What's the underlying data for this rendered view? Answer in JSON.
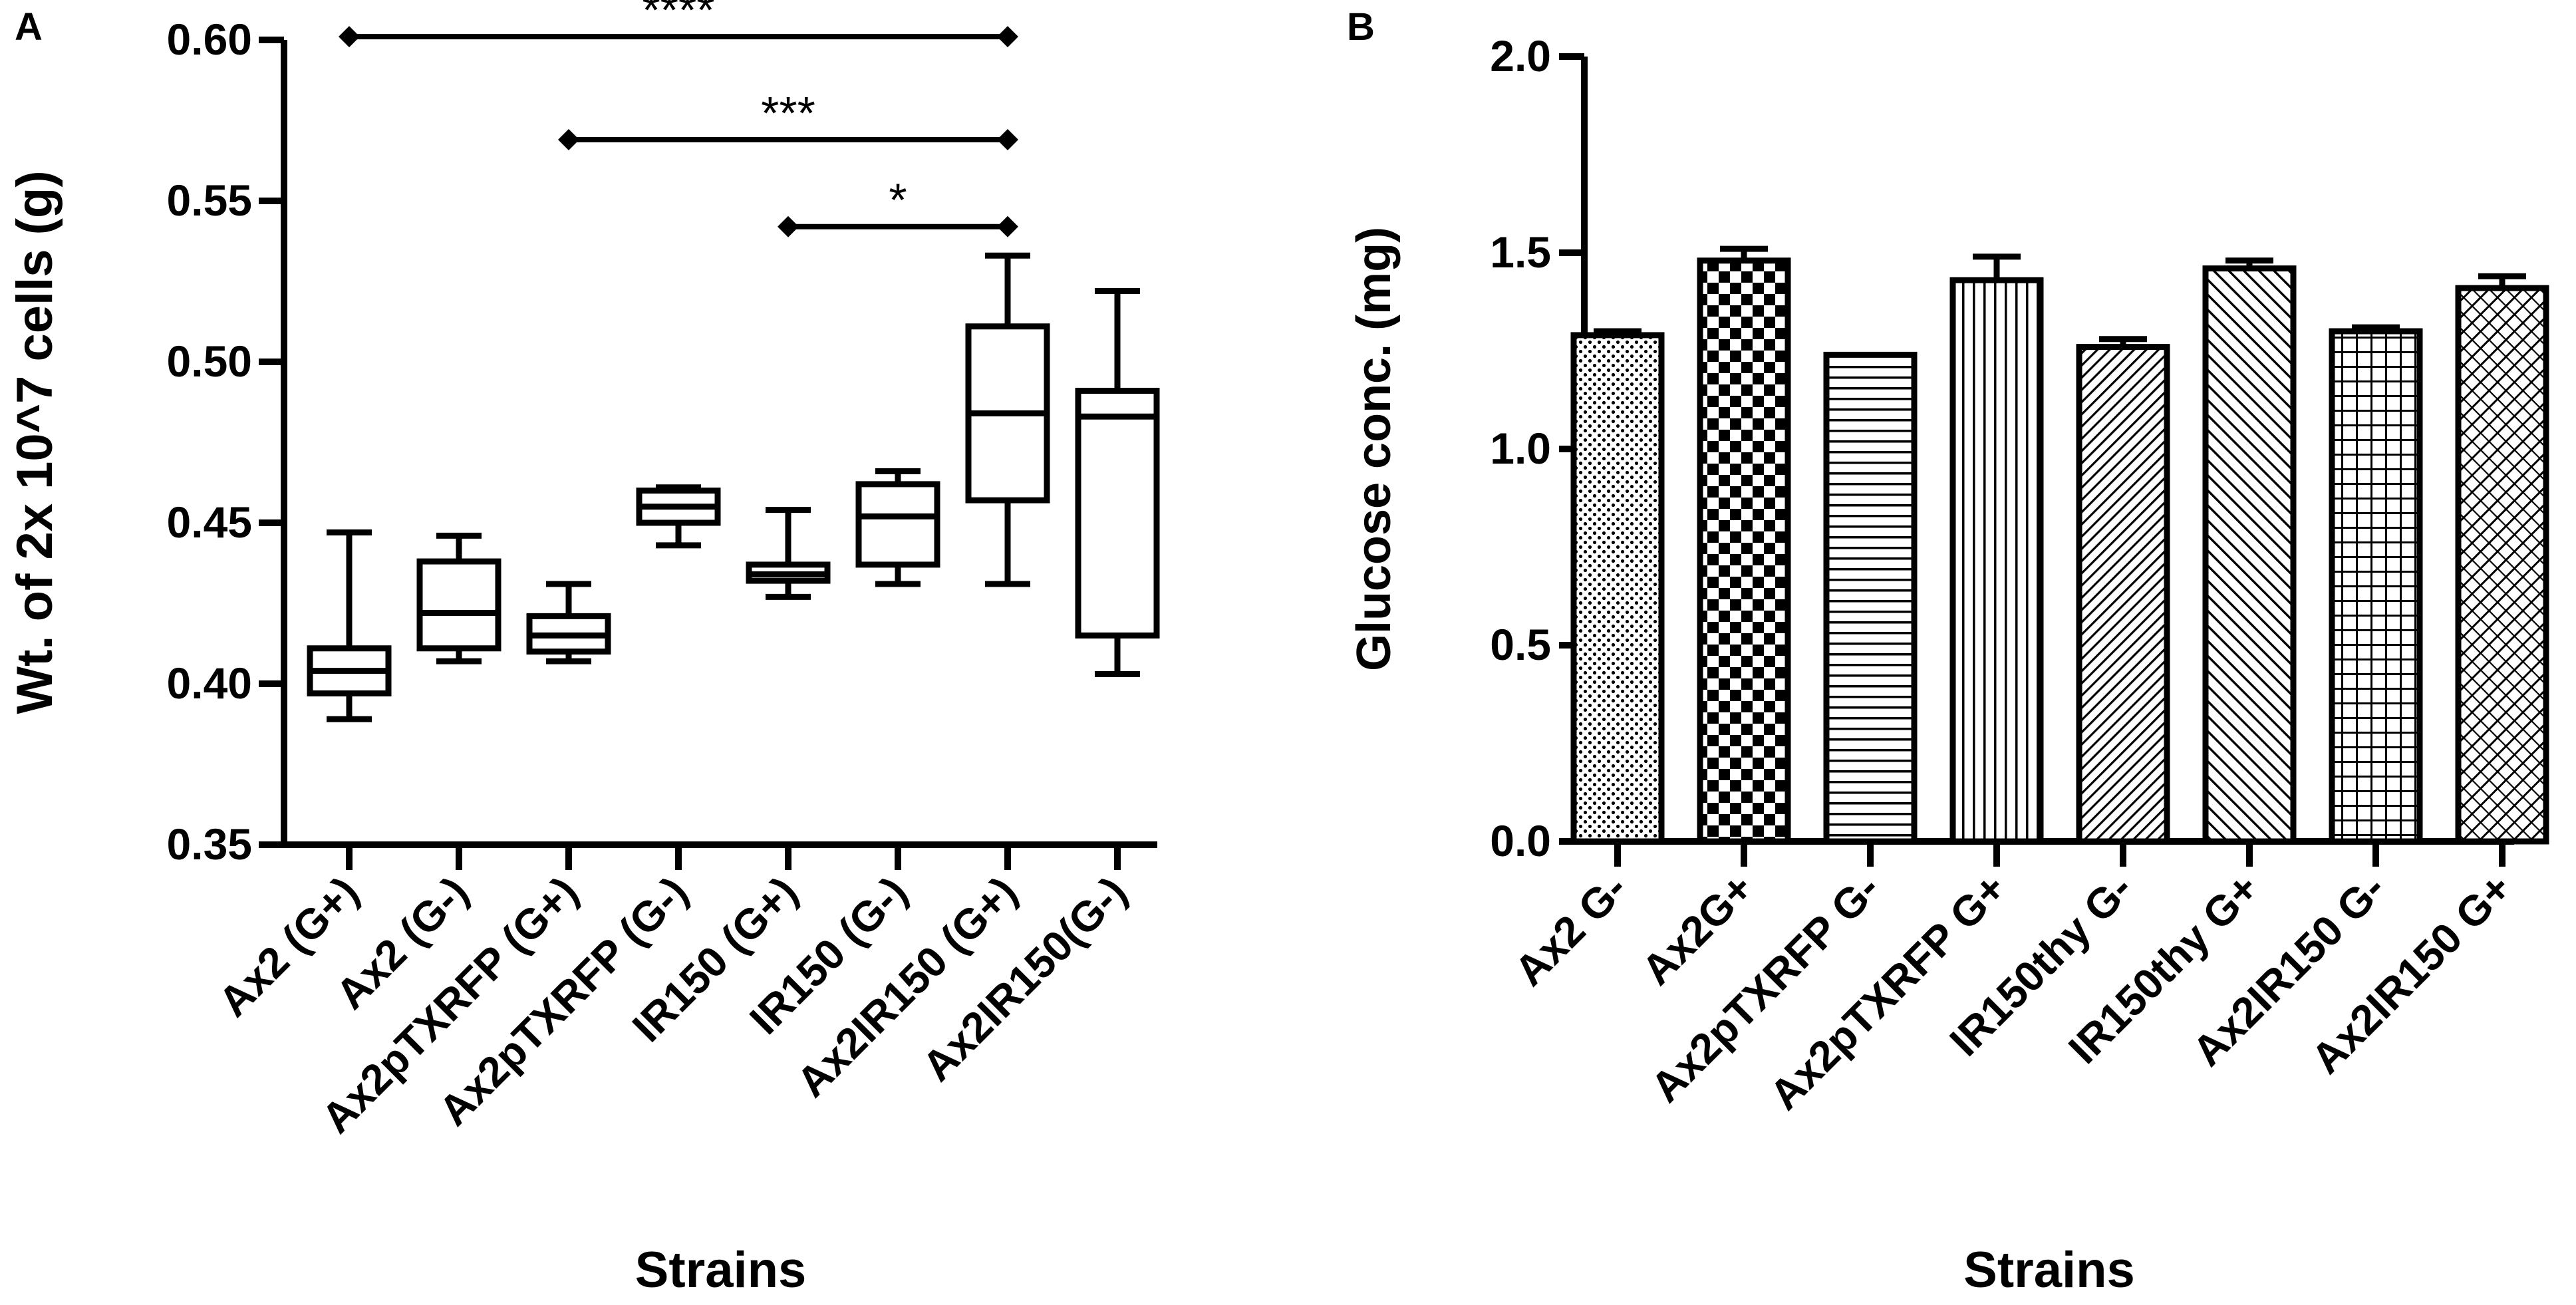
{
  "chart_data": [
    {
      "panel": "A",
      "type": "boxplot",
      "title": "",
      "xlabel": "Strains",
      "ylabel": "Wt. of 2x 10^7 cells (g)",
      "ylim": [
        0.35,
        0.6
      ],
      "yticks": [
        "0.35",
        "0.40",
        "0.45",
        "0.50",
        "0.55",
        "0.60"
      ],
      "categories": [
        "Ax2 (G+)",
        "Ax2 (G-)",
        "Ax2pTXRFP (G+)",
        "Ax2pTXRFP (G-)",
        "IR150 (G+)",
        "IR150 (G-)",
        "Ax2IR150 (G+)",
        "Ax2IR150(G-)"
      ],
      "boxes": [
        {
          "min": 0.389,
          "q1": 0.397,
          "median": 0.404,
          "q3": 0.411,
          "max": 0.447
        },
        {
          "min": 0.407,
          "q1": 0.411,
          "median": 0.422,
          "q3": 0.438,
          "max": 0.446
        },
        {
          "min": 0.407,
          "q1": 0.41,
          "median": 0.415,
          "q3": 0.421,
          "max": 0.431
        },
        {
          "min": 0.443,
          "q1": 0.45,
          "median": 0.455,
          "q3": 0.46,
          "max": 0.461
        },
        {
          "min": 0.427,
          "q1": 0.432,
          "median": 0.434,
          "q3": 0.437,
          "max": 0.454
        },
        {
          "min": 0.431,
          "q1": 0.437,
          "median": 0.452,
          "q3": 0.462,
          "max": 0.466
        },
        {
          "min": 0.431,
          "q1": 0.457,
          "median": 0.484,
          "q3": 0.511,
          "max": 0.533
        },
        {
          "min": 0.403,
          "q1": 0.415,
          "median": 0.483,
          "q3": 0.491,
          "max": 0.522
        }
      ],
      "significance": [
        {
          "from": 0,
          "to": 6,
          "label": "****",
          "y": 0.601
        },
        {
          "from": 2,
          "to": 6,
          "label": "***",
          "y": 0.569
        },
        {
          "from": 4,
          "to": 6,
          "label": "*",
          "y": 0.542
        }
      ]
    },
    {
      "panel": "B",
      "type": "bar",
      "title": "",
      "xlabel": "Strains",
      "ylabel": "Glucose conc. (mg)",
      "ylim": [
        0,
        2.0
      ],
      "yticks": [
        "0.0",
        "0.5",
        "1.0",
        "1.5",
        "2.0"
      ],
      "categories": [
        "Ax2 G-",
        "Ax2G+",
        "Ax2pTXRFP G-",
        "Ax2pTXRFP G+",
        "IR150thy G-",
        "IR150thy G+",
        "Ax2IR150 G-",
        "Ax2IR150 G+"
      ],
      "values": [
        1.29,
        1.48,
        1.24,
        1.43,
        1.26,
        1.46,
        1.3,
        1.41
      ],
      "errors": [
        0.01,
        0.03,
        0.0,
        0.06,
        0.02,
        0.02,
        0.01,
        0.03
      ],
      "patterns": [
        "pat-dots",
        "pat-checker",
        "pat-hlines",
        "pat-vlines",
        "pat-diag-dense",
        "pat-diag",
        "pat-grid",
        "pat-diag-cross"
      ]
    }
  ]
}
